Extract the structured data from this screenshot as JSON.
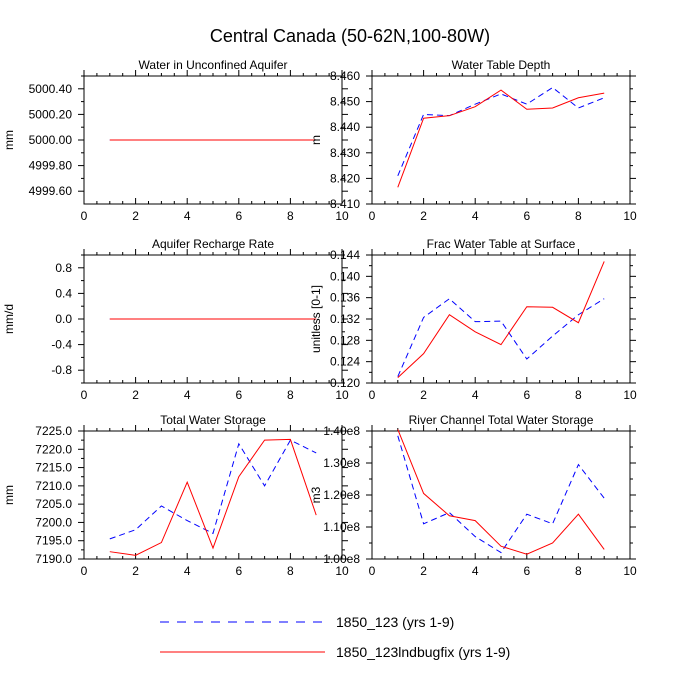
{
  "figure_title": "Central Canada (50-62N,100-80W)",
  "colors": {
    "series_a": "#0000ff",
    "series_b": "#ff0000",
    "axis": "#000000"
  },
  "legend": [
    {
      "label": "1850_123 (yrs 1-9)",
      "style": "dashed",
      "color": "#0000ff"
    },
    {
      "label": "1850_123lndbugfix (yrs 1-9)",
      "style": "solid",
      "color": "#ff0000"
    }
  ],
  "chart_data": [
    {
      "type": "line",
      "title": "Water in Unconfined Aquifer",
      "ylabel": "mm",
      "xlim": [
        0,
        10
      ],
      "ylim": [
        4999.5,
        5000.5
      ],
      "xticks": [
        0,
        2,
        4,
        6,
        8,
        10
      ],
      "yticks": [
        4999.6,
        4999.8,
        5000.0,
        5000.2,
        5000.4
      ],
      "ytick_labels": [
        "4999.60",
        "4999.80",
        "5000.00",
        "5000.20",
        "5000.40"
      ],
      "x": [
        1,
        2,
        3,
        4,
        5,
        6,
        7,
        8,
        9
      ],
      "series": [
        {
          "name": "1850_123 (yrs 1-9)",
          "values": [
            5000,
            5000,
            5000,
            5000,
            5000,
            5000,
            5000,
            5000,
            5000
          ]
        },
        {
          "name": "1850_123lndbugfix (yrs 1-9)",
          "values": [
            5000,
            5000,
            5000,
            5000,
            5000,
            5000,
            5000,
            5000,
            5000
          ]
        }
      ]
    },
    {
      "type": "line",
      "title": "Water Table Depth",
      "ylabel": "m",
      "xlim": [
        0,
        10
      ],
      "ylim": [
        8.41,
        8.46
      ],
      "xticks": [
        0,
        2,
        4,
        6,
        8,
        10
      ],
      "yticks": [
        8.41,
        8.42,
        8.43,
        8.44,
        8.45,
        8.46
      ],
      "ytick_labels": [
        "8.410",
        "8.420",
        "8.430",
        "8.440",
        "8.450",
        "8.460"
      ],
      "x": [
        1,
        2,
        3,
        4,
        5,
        6,
        7,
        8,
        9
      ],
      "series": [
        {
          "name": "1850_123 (yrs 1-9)",
          "values": [
            8.421,
            8.445,
            8.4445,
            8.449,
            8.453,
            8.449,
            8.4555,
            8.4475,
            8.4515
          ]
        },
        {
          "name": "1850_123lndbugfix (yrs 1-9)",
          "values": [
            8.4165,
            8.4435,
            8.4445,
            8.448,
            8.4545,
            8.447,
            8.4475,
            8.4515,
            8.4533
          ]
        }
      ]
    },
    {
      "type": "line",
      "title": "Aquifer Recharge Rate",
      "ylabel": "mm/d",
      "xlim": [
        0,
        10
      ],
      "ylim": [
        -1.0,
        1.0
      ],
      "xticks": [
        0,
        2,
        4,
        6,
        8,
        10
      ],
      "yticks": [
        -0.8,
        -0.4,
        0.0,
        0.4,
        0.8
      ],
      "ytick_labels": [
        "-0.8",
        "-0.4",
        "0.0",
        "0.4",
        "0.8"
      ],
      "x": [
        1,
        2,
        3,
        4,
        5,
        6,
        7,
        8,
        9
      ],
      "series": [
        {
          "name": "1850_123 (yrs 1-9)",
          "values": [
            0,
            0,
            0,
            0,
            0,
            0,
            0,
            0,
            0
          ]
        },
        {
          "name": "1850_123lndbugfix (yrs 1-9)",
          "values": [
            0,
            0,
            0,
            0,
            0,
            0,
            0,
            0,
            0
          ]
        }
      ]
    },
    {
      "type": "line",
      "title": "Frac Water Table at Surface",
      "ylabel": "unitless [0-1]",
      "xlim": [
        0,
        10
      ],
      "ylim": [
        0.12,
        0.144
      ],
      "xticks": [
        0,
        2,
        4,
        6,
        8,
        10
      ],
      "yticks": [
        0.12,
        0.124,
        0.128,
        0.132,
        0.136,
        0.14,
        0.144
      ],
      "ytick_labels": [
        "0.120",
        "0.124",
        "0.128",
        "0.132",
        "0.136",
        "0.140",
        "0.144"
      ],
      "x": [
        1,
        2,
        3,
        4,
        5,
        6,
        7,
        8,
        9
      ],
      "series": [
        {
          "name": "1850_123 (yrs 1-9)",
          "values": [
            0.1212,
            0.1323,
            0.1358,
            0.1315,
            0.1316,
            0.1245,
            0.1288,
            0.1328,
            0.1358
          ]
        },
        {
          "name": "1850_123lndbugfix (yrs 1-9)",
          "values": [
            0.121,
            0.1255,
            0.1328,
            0.1296,
            0.1272,
            0.1343,
            0.1342,
            0.1313,
            0.1428
          ]
        }
      ]
    },
    {
      "type": "line",
      "title": "Total Water Storage",
      "ylabel": "mm",
      "xlim": [
        0,
        10
      ],
      "ylim": [
        7190,
        7225
      ],
      "xticks": [
        0,
        2,
        4,
        6,
        8,
        10
      ],
      "yticks": [
        7190,
        7195,
        7200,
        7205,
        7210,
        7215,
        7220,
        7225
      ],
      "ytick_labels": [
        "7190.0",
        "7195.0",
        "7200.0",
        "7205.0",
        "7210.0",
        "7215.0",
        "7220.0",
        "7225.0"
      ],
      "x": [
        1,
        2,
        3,
        4,
        5,
        6,
        7,
        8,
        9
      ],
      "series": [
        {
          "name": "1850_123 (yrs 1-9)",
          "values": [
            7195.5,
            7198,
            7204.5,
            7200.5,
            7197,
            7221.5,
            7210,
            7222.5,
            7219
          ]
        },
        {
          "name": "1850_123lndbugfix (yrs 1-9)",
          "values": [
            7192,
            7191,
            7194.5,
            7211,
            7193,
            7212.5,
            7222.5,
            7222.7,
            7202
          ]
        }
      ]
    },
    {
      "type": "line",
      "title": "River Channel Total Water Storage",
      "ylabel": "m3",
      "xlim": [
        0,
        10
      ],
      "ylim": [
        100000000,
        140000000
      ],
      "xticks": [
        0,
        2,
        4,
        6,
        8,
        10
      ],
      "yticks": [
        100000000,
        110000000,
        120000000,
        130000000,
        140000000
      ],
      "ytick_labels": [
        "1.00e8",
        "1.10e8",
        "1.20e8",
        "1.30e8",
        "1.40e8"
      ],
      "x": [
        1,
        2,
        3,
        4,
        5,
        6,
        7,
        8,
        9
      ],
      "series": [
        {
          "name": "1850_123 (yrs 1-9)",
          "values": [
            138500000,
            111000000,
            114500000,
            107000000,
            102000000,
            114000000,
            111000000,
            129500000,
            119000000
          ]
        },
        {
          "name": "1850_123lndbugfix (yrs 1-9)",
          "values": [
            140500000,
            120500000,
            113500000,
            112000000,
            104000000,
            101500000,
            105000000,
            114000000,
            103000000
          ]
        }
      ]
    }
  ]
}
